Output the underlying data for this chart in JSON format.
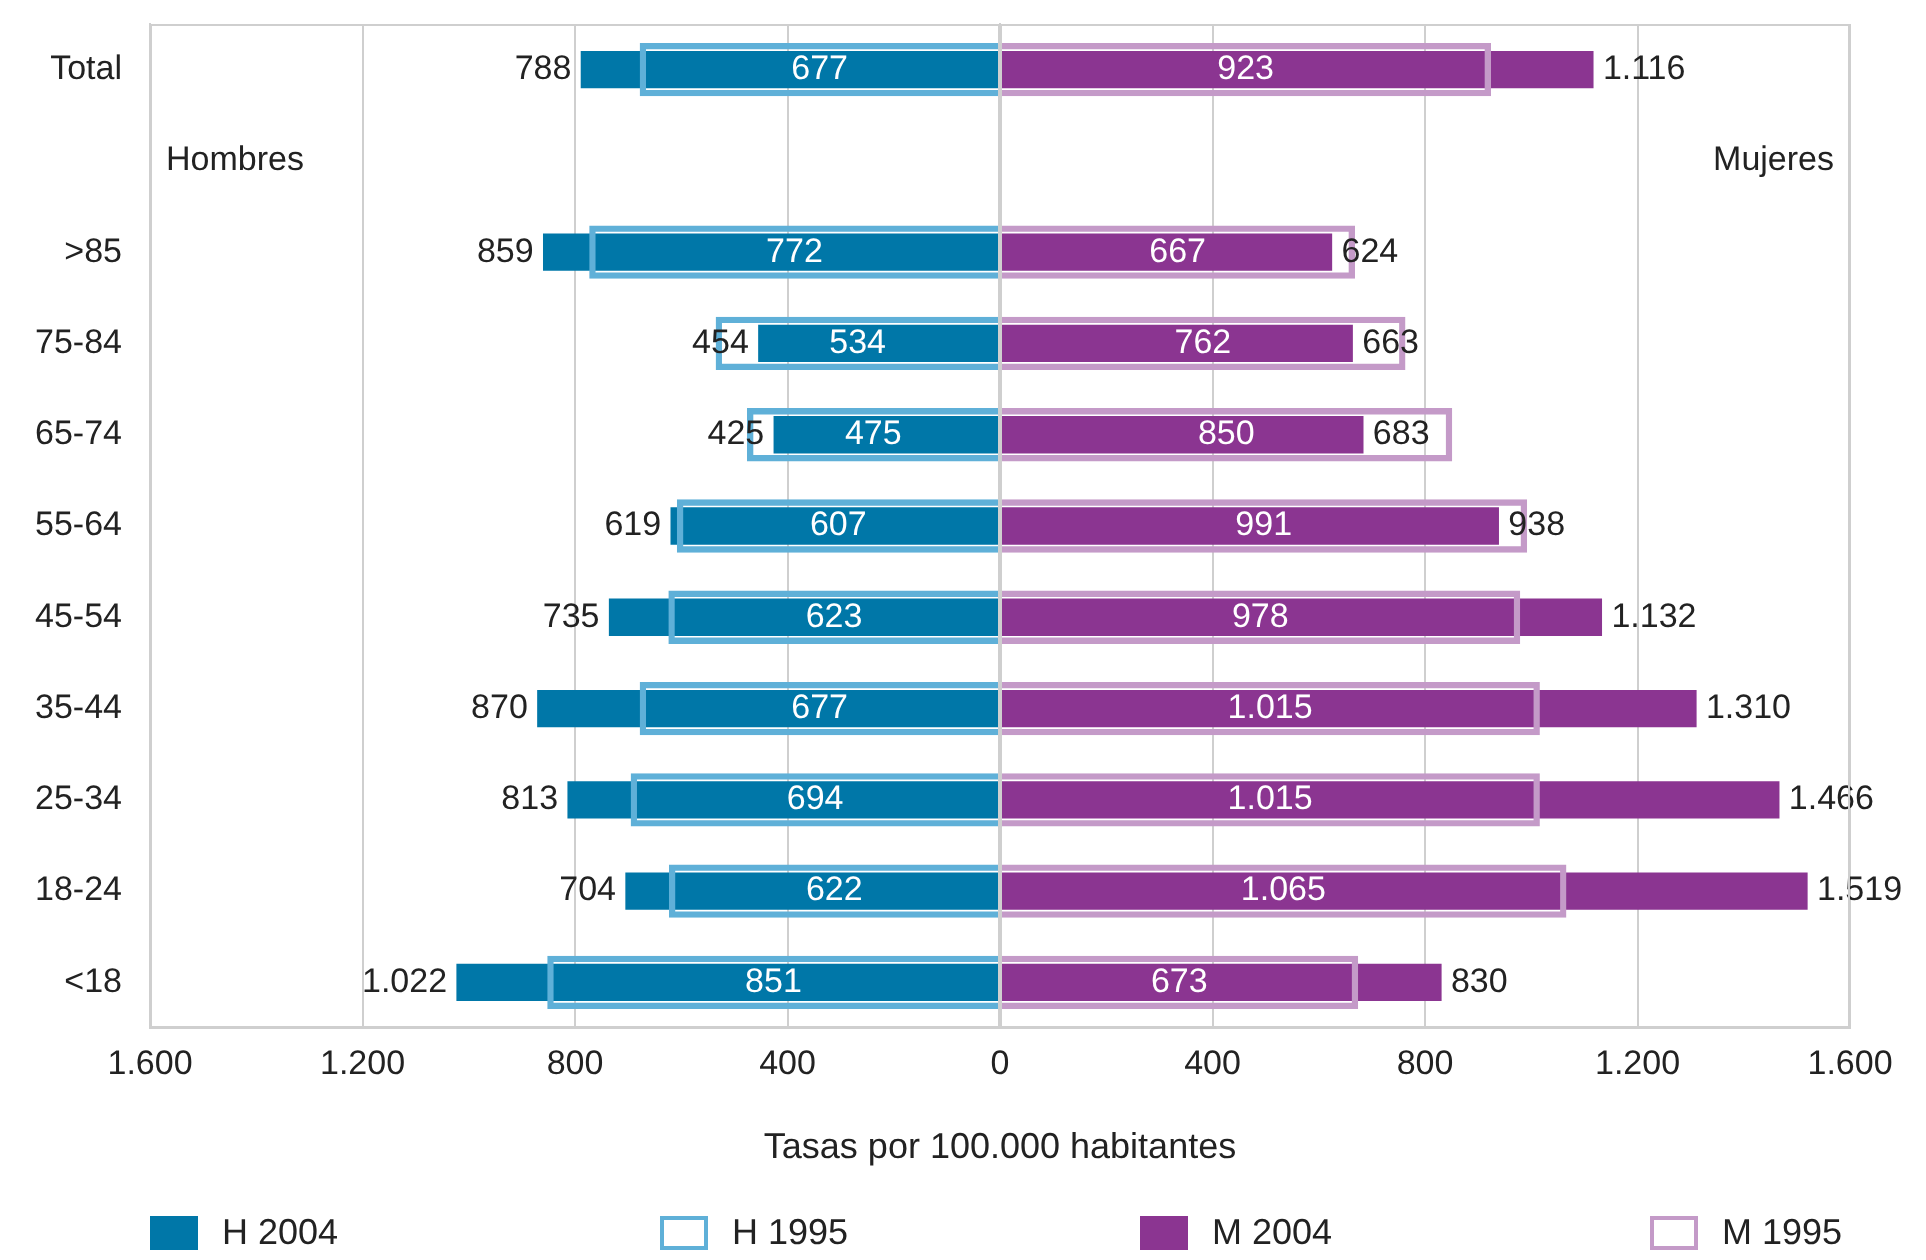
{
  "chart_data": [
    {
      "type": "bar",
      "orientation": "horizontal",
      "xlabel": "Tasas por 100.000 habitantes",
      "categories": [
        "Total",
        null,
        ">85",
        "75-84",
        "65-74",
        "55-64",
        "45-54",
        "35-44",
        "25-34",
        "18-24",
        "<18"
      ],
      "series": [
        {
          "name": "H 2004",
          "color": "#0077a8",
          "values": [
            788,
            null,
            859,
            454,
            425,
            619,
            735,
            870,
            813,
            704,
            1022
          ],
          "value_labels": [
            "788",
            null,
            "859",
            "454",
            "425",
            "619",
            "735",
            "870",
            "813",
            "704",
            "1.022"
          ]
        },
        {
          "name": "H 1995",
          "color": "#5fb0d8",
          "values": [
            677,
            null,
            772,
            534,
            475,
            607,
            623,
            677,
            694,
            622,
            851
          ],
          "value_labels": [
            "677",
            null,
            "772",
            "534",
            "475",
            "607",
            "623",
            "677",
            "694",
            "622",
            "851"
          ]
        }
      ],
      "xlim": [
        1600,
        0
      ],
      "xticks": [
        {
          "value": 1600,
          "label": "1.600"
        },
        {
          "value": 1200,
          "label": "1.200"
        },
        800,
        400,
        {
          "value": 0,
          "label": null
        }
      ],
      "annotations": [
        "Hombres"
      ],
      "grid": "x",
      "legend": "bottom"
    },
    {
      "type": "bar",
      "orientation": "horizontal",
      "series": [
        {
          "name": "M 2004",
          "color": "#8b3591",
          "values": [
            1116,
            null,
            624,
            663,
            683,
            938,
            1132,
            1310,
            1466,
            1519,
            830
          ],
          "value_labels": [
            "1.116",
            null,
            "624",
            "663",
            "683",
            "938",
            "1.132",
            "1.310",
            "1.466",
            "1.519",
            "830"
          ]
        },
        {
          "name": "M 1995",
          "color": "#c49ac8",
          "values": [
            923,
            null,
            667,
            762,
            850,
            991,
            978,
            1015,
            1015,
            1065,
            673
          ],
          "value_labels": [
            "923",
            null,
            "667",
            "762",
            "850",
            "991",
            "978",
            "1.015",
            "1.015",
            "1.065",
            "673"
          ]
        }
      ],
      "xlim": [
        0,
        1600
      ],
      "xticks": [
        0,
        400,
        800,
        {
          "value": 1200,
          "label": "1.200"
        },
        {
          "value": 1600,
          "label": "1.600"
        }
      ],
      "tick_labels": "x",
      "annotations": [
        "Mujeres"
      ],
      "grid": "x",
      "legend": "bottom"
    }
  ]
}
